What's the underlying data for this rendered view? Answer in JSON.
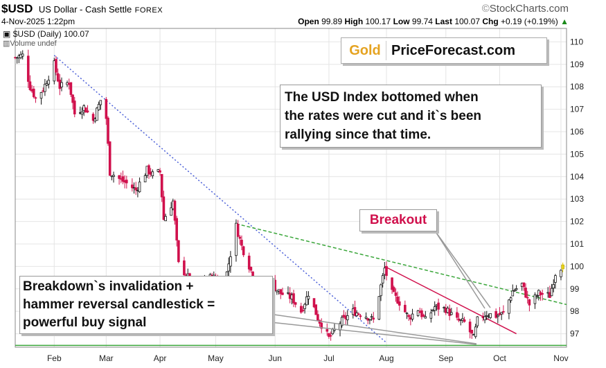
{
  "header": {
    "symbol": "$USD",
    "description": "US Dollar - Cash Settle",
    "market": "FOREX",
    "datetime": "4-Nov-2025 1:22pm",
    "brand": "StockCharts.com",
    "brand_prefix": "©",
    "open_label": "Open",
    "open": "99.89",
    "high_label": "High",
    "high": "100.17",
    "low_label": "Low",
    "low": "99.74",
    "last_label": "Last",
    "last": "100.07",
    "chg_label": "Chg",
    "chg": "+0.19 (+0.19%)"
  },
  "legend": {
    "series": "$USD (Daily) 100.07",
    "volume": "Volume undef"
  },
  "logo": {
    "gold": "Gold",
    "site": "PriceForecast.com"
  },
  "annotations": {
    "rates_line1": "The USD Index bottomed when",
    "rates_line2": "the rates were cut and it`s been",
    "rates_line3": "rallying since that time.",
    "breakout": "Breakout",
    "signal_line1": "Breakdown`s invalidation +",
    "signal_line2": "hammer reversal candlestick =",
    "signal_line3": "powerful buy signal"
  },
  "colors": {
    "up": "#111111",
    "down": "#d0104c",
    "last_candle": "#e8d21a",
    "downtrend_blue": "#4a5fd8",
    "trend_green": "#3aa63a",
    "support_green": "#3aa63a",
    "wedge_red": "#d0104c",
    "pointer_grey": "#999999"
  },
  "chart_data": {
    "type": "candlestick",
    "title": "$USD (Daily) 100.07",
    "ylim": [
      96.4,
      110.6
    ],
    "y_ticks": [
      97,
      98,
      99,
      100,
      101,
      102,
      103,
      104,
      105,
      106,
      107,
      108,
      109,
      110
    ],
    "x_range": [
      "2025-01-13",
      "2025-11-06"
    ],
    "x_ticks": [
      {
        "label": "Feb",
        "date": "2025-02-03"
      },
      {
        "label": "Mar",
        "date": "2025-03-03"
      },
      {
        "label": "Apr",
        "date": "2025-04-01"
      },
      {
        "label": "May",
        "date": "2025-05-01"
      },
      {
        "label": "Jun",
        "date": "2025-06-02"
      },
      {
        "label": "Jul",
        "date": "2025-07-01"
      },
      {
        "label": "Aug",
        "date": "2025-08-01"
      },
      {
        "label": "Sep",
        "date": "2025-09-02"
      },
      {
        "label": "Oct",
        "date": "2025-10-01"
      },
      {
        "label": "Nov",
        "date": "2025-11-03"
      }
    ],
    "grid": true,
    "close_path": [
      [
        "2025-01-13",
        109.3
      ],
      [
        "2025-01-17",
        109.4
      ],
      [
        "2025-01-21",
        108.0
      ],
      [
        "2025-01-24",
        107.5
      ],
      [
        "2025-01-28",
        107.9
      ],
      [
        "2025-02-03",
        109.0
      ],
      [
        "2025-02-06",
        108.0
      ],
      [
        "2025-02-11",
        108.2
      ],
      [
        "2025-02-14",
        106.8
      ],
      [
        "2025-02-19",
        107.1
      ],
      [
        "2025-02-24",
        106.5
      ],
      [
        "2025-02-28",
        107.4
      ],
      [
        "2025-03-03",
        106.6
      ],
      [
        "2025-03-05",
        104.2
      ],
      [
        "2025-03-10",
        103.9
      ],
      [
        "2025-03-14",
        103.7
      ],
      [
        "2025-03-19",
        103.4
      ],
      [
        "2025-03-25",
        104.3
      ],
      [
        "2025-03-28",
        104.1
      ],
      [
        "2025-04-01",
        104.2
      ],
      [
        "2025-04-03",
        102.1
      ],
      [
        "2025-04-08",
        102.9
      ],
      [
        "2025-04-11",
        100.1
      ],
      [
        "2025-04-17",
        99.4
      ],
      [
        "2025-04-21",
        98.3
      ],
      [
        "2025-04-25",
        99.5
      ],
      [
        "2025-04-30",
        99.5
      ],
      [
        "2025-05-06",
        99.3
      ],
      [
        "2025-05-12",
        101.8
      ],
      [
        "2025-05-15",
        100.9
      ],
      [
        "2025-05-21",
        99.6
      ],
      [
        "2025-05-26",
        99.0
      ],
      [
        "2025-05-30",
        99.3
      ],
      [
        "2025-06-05",
        98.8
      ],
      [
        "2025-06-11",
        98.6
      ],
      [
        "2025-06-16",
        98.0
      ],
      [
        "2025-06-20",
        98.8
      ],
      [
        "2025-06-25",
        97.7
      ],
      [
        "2025-07-01",
        96.8
      ],
      [
        "2025-07-07",
        97.5
      ],
      [
        "2025-07-14",
        98.0
      ],
      [
        "2025-07-21",
        97.8
      ],
      [
        "2025-07-25",
        97.6
      ],
      [
        "2025-07-31",
        99.9
      ],
      [
        "2025-08-04",
        98.8
      ],
      [
        "2025-08-08",
        98.4
      ],
      [
        "2025-08-13",
        97.7
      ],
      [
        "2025-08-18",
        98.1
      ],
      [
        "2025-08-22",
        97.6
      ],
      [
        "2025-08-27",
        98.2
      ],
      [
        "2025-09-02",
        98.1
      ],
      [
        "2025-09-08",
        97.6
      ],
      [
        "2025-09-12",
        97.5
      ],
      [
        "2025-09-17",
        96.8
      ],
      [
        "2025-09-19",
        97.6
      ],
      [
        "2025-09-24",
        97.9
      ],
      [
        "2025-09-29",
        97.8
      ],
      [
        "2025-10-03",
        97.9
      ],
      [
        "2025-10-08",
        98.9
      ],
      [
        "2025-10-13",
        99.2
      ],
      [
        "2025-10-17",
        98.3
      ],
      [
        "2025-10-22",
        98.8
      ],
      [
        "2025-10-28",
        98.7
      ],
      [
        "2025-10-31",
        99.7
      ],
      [
        "2025-11-04",
        100.07
      ]
    ],
    "last_candle": {
      "date": "2025-11-04",
      "open": 99.89,
      "high": 100.17,
      "low": 99.74,
      "close": 100.07
    },
    "trendlines": [
      {
        "kind": "downtrend-dotted",
        "color": "downtrend_blue",
        "from": [
          "2025-02-03",
          109.4
        ],
        "to": [
          "2025-08-01",
          96.6
        ]
      },
      {
        "kind": "dashed-resistance",
        "color": "trend_green",
        "from": [
          "2025-05-12",
          101.9
        ],
        "to": [
          "2025-11-06",
          98.3
        ]
      },
      {
        "kind": "support",
        "color": "support_green",
        "from": [
          "2025-01-13",
          96.48
        ],
        "to": [
          "2025-11-06",
          96.48
        ]
      },
      {
        "kind": "wedge-upper",
        "color": "wedge_red",
        "from": [
          "2025-07-31",
          100.0
        ],
        "to": [
          "2025-10-10",
          97.0
        ]
      }
    ]
  }
}
